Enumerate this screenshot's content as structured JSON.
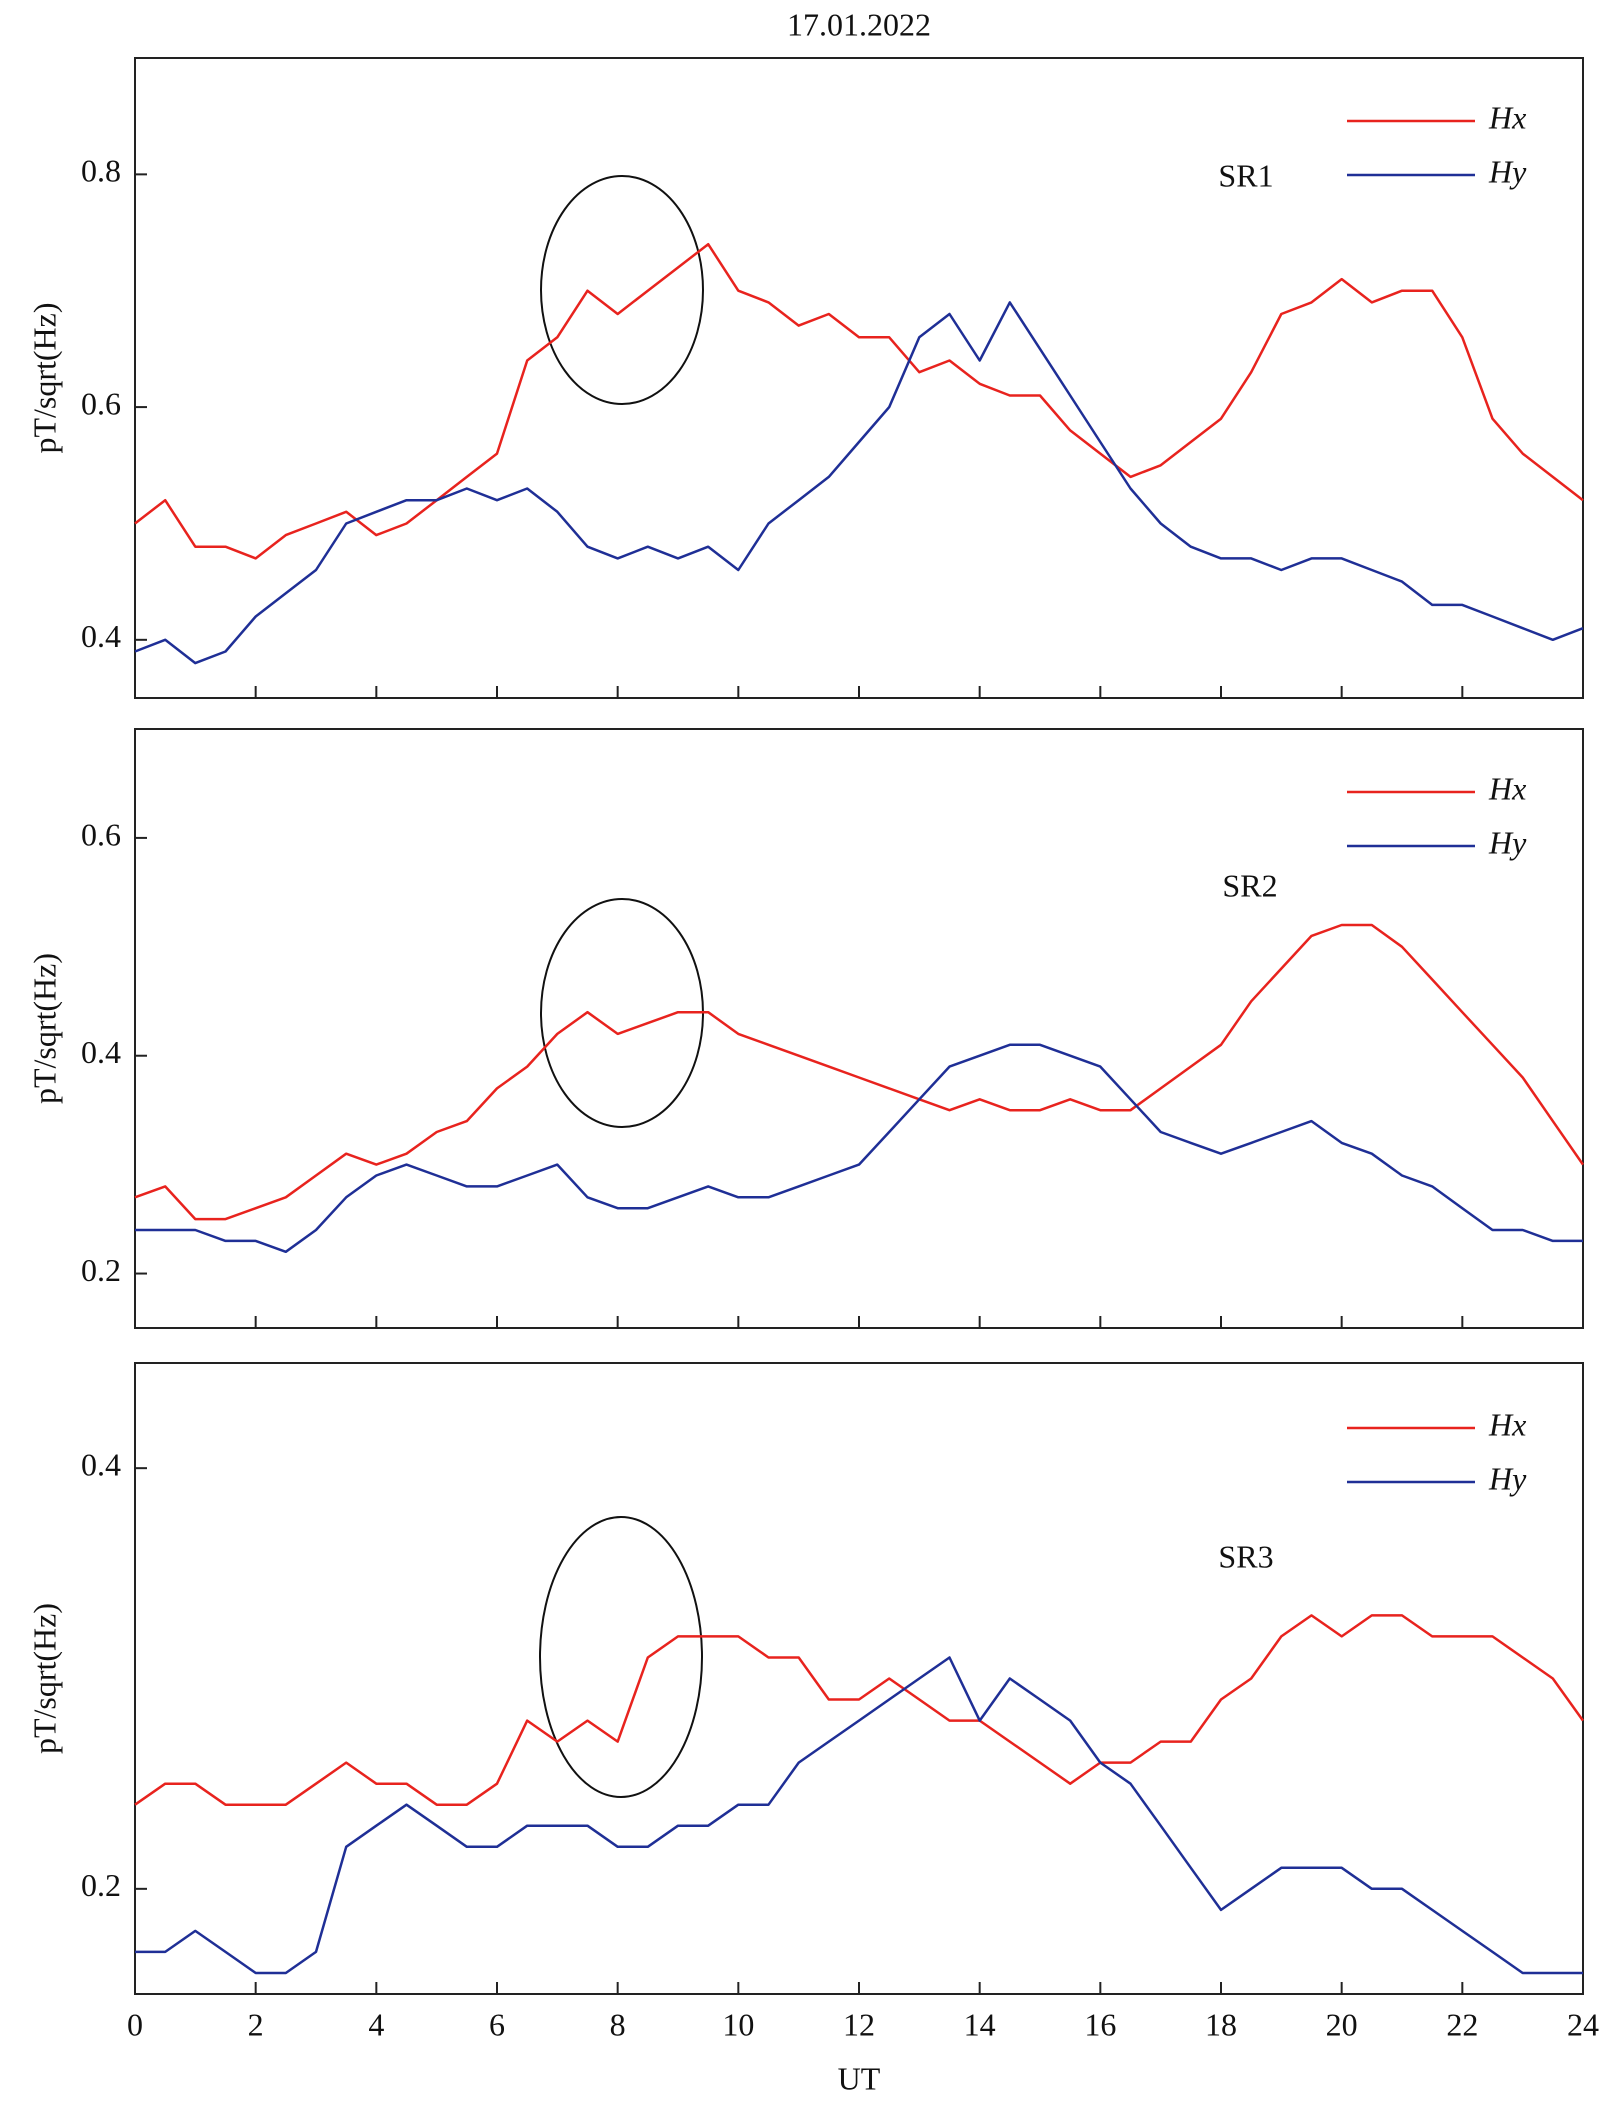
{
  "chart_data": [
    {
      "type": "line",
      "title": "17.01.2022",
      "ylabel": "pT/sqrt(Hz)",
      "annotation": "SR1",
      "x": [
        0,
        0.5,
        1,
        1.5,
        2,
        2.5,
        3,
        3.5,
        4,
        4.5,
        5,
        5.5,
        6,
        6.5,
        7,
        7.5,
        8,
        8.5,
        9,
        9.5,
        10,
        10.5,
        11,
        11.5,
        12,
        12.5,
        13,
        13.5,
        14,
        14.5,
        15,
        15.5,
        16,
        16.5,
        17,
        17.5,
        18,
        18.5,
        19,
        19.5,
        20,
        20.5,
        21,
        21.5,
        22,
        22.5,
        23,
        23.5,
        24
      ],
      "xlim": [
        0,
        24
      ],
      "ylim": [
        0.35,
        0.9
      ],
      "yticks": [
        0.4,
        0.6,
        0.8
      ],
      "series": [
        {
          "name": "Hx",
          "color": "#e8231e",
          "values": [
            0.5,
            0.52,
            0.48,
            0.48,
            0.47,
            0.49,
            0.5,
            0.51,
            0.49,
            0.5,
            0.52,
            0.54,
            0.56,
            0.64,
            0.66,
            0.7,
            0.68,
            0.7,
            0.72,
            0.74,
            0.7,
            0.69,
            0.67,
            0.68,
            0.66,
            0.66,
            0.63,
            0.64,
            0.62,
            0.61,
            0.61,
            0.58,
            0.56,
            0.54,
            0.55,
            0.57,
            0.59,
            0.63,
            0.68,
            0.69,
            0.71,
            0.69,
            0.7,
            0.7,
            0.66,
            0.59,
            0.56,
            0.54,
            0.52
          ]
        },
        {
          "name": "Hy",
          "color": "#1f2f96",
          "values": [
            0.39,
            0.4,
            0.38,
            0.39,
            0.42,
            0.44,
            0.46,
            0.5,
            0.51,
            0.52,
            0.52,
            0.53,
            0.52,
            0.53,
            0.51,
            0.48,
            0.47,
            0.48,
            0.47,
            0.48,
            0.46,
            0.5,
            0.52,
            0.54,
            0.57,
            0.6,
            0.66,
            0.68,
            0.64,
            0.69,
            0.65,
            0.61,
            0.57,
            0.53,
            0.5,
            0.48,
            0.47,
            0.47,
            0.46,
            0.47,
            0.47,
            0.46,
            0.45,
            0.43,
            0.43,
            0.42,
            0.41,
            0.4,
            0.41
          ]
        }
      ]
    },
    {
      "type": "line",
      "ylabel": "pT/sqrt(Hz)",
      "annotation": "SR2",
      "x": [
        0,
        0.5,
        1,
        1.5,
        2,
        2.5,
        3,
        3.5,
        4,
        4.5,
        5,
        5.5,
        6,
        6.5,
        7,
        7.5,
        8,
        8.5,
        9,
        9.5,
        10,
        10.5,
        11,
        11.5,
        12,
        12.5,
        13,
        13.5,
        14,
        14.5,
        15,
        15.5,
        16,
        16.5,
        17,
        17.5,
        18,
        18.5,
        19,
        19.5,
        20,
        20.5,
        21,
        21.5,
        22,
        22.5,
        23,
        23.5,
        24
      ],
      "xlim": [
        0,
        24
      ],
      "ylim": [
        0.15,
        0.7
      ],
      "yticks": [
        0.2,
        0.4,
        0.6
      ],
      "series": [
        {
          "name": "Hx",
          "color": "#e8231e",
          "values": [
            0.27,
            0.28,
            0.25,
            0.25,
            0.26,
            0.27,
            0.29,
            0.31,
            0.3,
            0.31,
            0.33,
            0.34,
            0.37,
            0.39,
            0.42,
            0.44,
            0.42,
            0.43,
            0.44,
            0.44,
            0.42,
            0.41,
            0.4,
            0.39,
            0.38,
            0.37,
            0.36,
            0.35,
            0.36,
            0.35,
            0.35,
            0.36,
            0.35,
            0.35,
            0.37,
            0.39,
            0.41,
            0.45,
            0.48,
            0.51,
            0.52,
            0.52,
            0.5,
            0.47,
            0.44,
            0.41,
            0.38,
            0.34,
            0.3
          ]
        },
        {
          "name": "Hy",
          "color": "#1f2f96",
          "values": [
            0.24,
            0.24,
            0.24,
            0.23,
            0.23,
            0.22,
            0.24,
            0.27,
            0.29,
            0.3,
            0.29,
            0.28,
            0.28,
            0.29,
            0.3,
            0.27,
            0.26,
            0.26,
            0.27,
            0.28,
            0.27,
            0.27,
            0.28,
            0.29,
            0.3,
            0.33,
            0.36,
            0.39,
            0.4,
            0.41,
            0.41,
            0.4,
            0.39,
            0.36,
            0.33,
            0.32,
            0.31,
            0.32,
            0.33,
            0.34,
            0.32,
            0.31,
            0.29,
            0.28,
            0.26,
            0.24,
            0.24,
            0.23,
            0.23
          ]
        }
      ]
    },
    {
      "type": "line",
      "ylabel": "pT/sqrt(Hz)",
      "xlabel": "UT",
      "annotation": "SR3",
      "x": [
        0,
        0.5,
        1,
        1.5,
        2,
        2.5,
        3,
        3.5,
        4,
        4.5,
        5,
        5.5,
        6,
        6.5,
        7,
        7.5,
        8,
        8.5,
        9,
        9.5,
        10,
        10.5,
        11,
        11.5,
        12,
        12.5,
        13,
        13.5,
        14,
        14.5,
        15,
        15.5,
        16,
        16.5,
        17,
        17.5,
        18,
        18.5,
        19,
        19.5,
        20,
        20.5,
        21,
        21.5,
        22,
        22.5,
        23,
        23.5,
        24
      ],
      "xlim": [
        0,
        24
      ],
      "xticks": [
        0,
        2,
        4,
        6,
        8,
        10,
        12,
        14,
        16,
        18,
        20,
        22,
        24
      ],
      "ylim": [
        0.15,
        0.45
      ],
      "yticks": [
        0.2,
        0.4
      ],
      "series": [
        {
          "name": "Hx",
          "color": "#e8231e",
          "values": [
            0.24,
            0.25,
            0.25,
            0.24,
            0.24,
            0.24,
            0.25,
            0.26,
            0.25,
            0.25,
            0.24,
            0.24,
            0.25,
            0.28,
            0.27,
            0.28,
            0.27,
            0.31,
            0.32,
            0.32,
            0.32,
            0.31,
            0.31,
            0.29,
            0.29,
            0.3,
            0.29,
            0.28,
            0.28,
            0.27,
            0.26,
            0.25,
            0.26,
            0.26,
            0.27,
            0.27,
            0.29,
            0.3,
            0.32,
            0.33,
            0.32,
            0.33,
            0.33,
            0.32,
            0.32,
            0.32,
            0.31,
            0.3,
            0.28
          ]
        },
        {
          "name": "Hy",
          "color": "#1f2f96",
          "values": [
            0.17,
            0.17,
            0.18,
            0.17,
            0.16,
            0.16,
            0.17,
            0.22,
            0.23,
            0.24,
            0.23,
            0.22,
            0.22,
            0.23,
            0.23,
            0.23,
            0.22,
            0.22,
            0.23,
            0.23,
            0.24,
            0.24,
            0.26,
            0.27,
            0.28,
            0.29,
            0.3,
            0.31,
            0.28,
            0.3,
            0.29,
            0.28,
            0.26,
            0.25,
            0.23,
            0.21,
            0.19,
            0.2,
            0.21,
            0.21,
            0.21,
            0.2,
            0.2,
            0.19,
            0.18,
            0.17,
            0.16,
            0.16,
            0.16
          ]
        }
      ]
    }
  ]
}
